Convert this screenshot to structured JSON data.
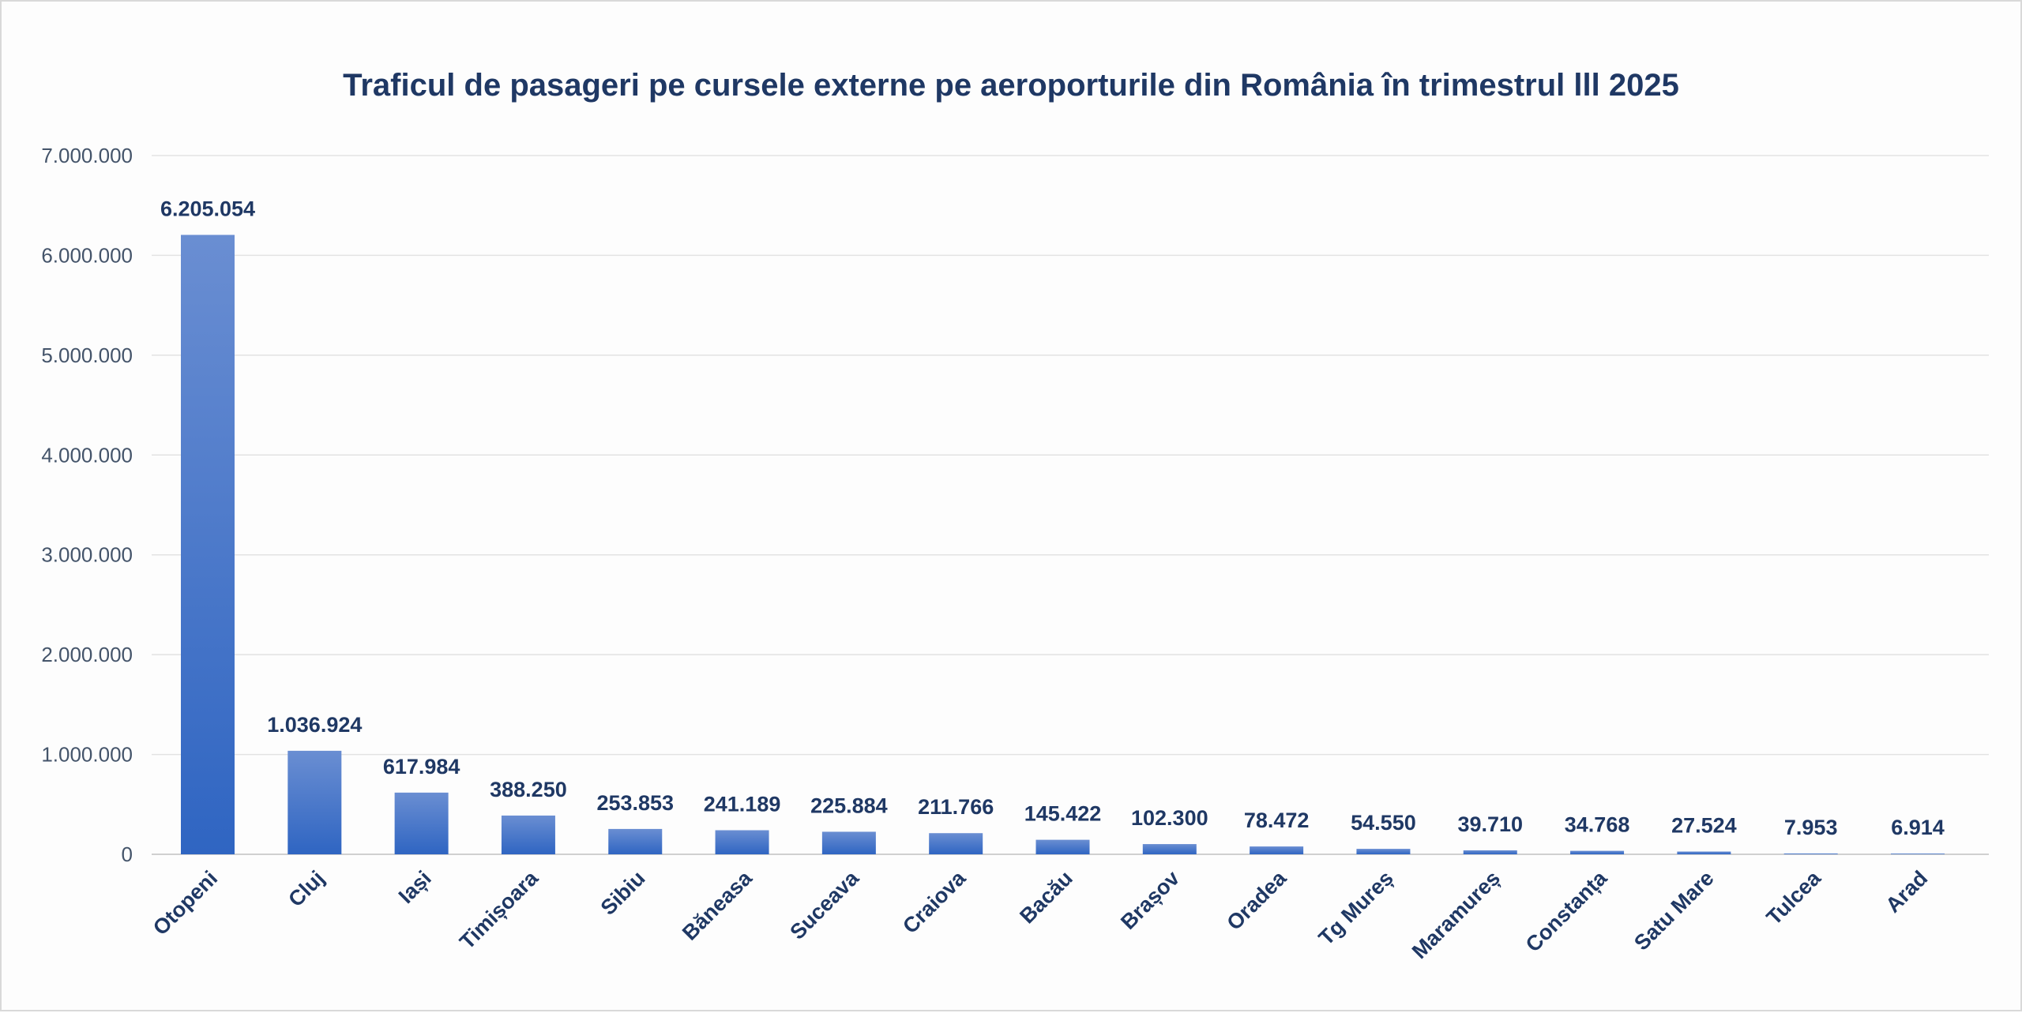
{
  "chart_data": {
    "type": "bar",
    "title": "Traficul de pasageri pe cursele externe pe aeroporturile din România în trimestrul lll 2025",
    "xlabel": "",
    "ylabel": "",
    "categories": [
      "Otopeni",
      "Cluj",
      "Iași",
      "Timișoara",
      "Sibiu",
      "Băneasa",
      "Suceava",
      "Craiova",
      "Bacău",
      "Brașov",
      "Oradea",
      "Tg Mureș",
      "Maramureș",
      "Constanța",
      "Satu Mare",
      "Tulcea",
      "Arad"
    ],
    "values": [
      6205054,
      1036924,
      617984,
      388250,
      253853,
      241189,
      225884,
      211766,
      145422,
      102300,
      78472,
      54550,
      39710,
      34768,
      27524,
      7953,
      6914
    ],
    "data_labels": [
      "6.205.054",
      "1.036.924",
      "617.984",
      "388.250",
      "253.853",
      "241.189",
      "225.884",
      "211.766",
      "145.422",
      "102.300",
      "78.472",
      "54.550",
      "39.710",
      "34.768",
      "27.524",
      "7.953",
      "6.914"
    ],
    "ylim": [
      0,
      7000000
    ],
    "yticks": [
      0,
      1000000,
      2000000,
      3000000,
      4000000,
      5000000,
      6000000,
      7000000
    ],
    "ytick_labels": [
      "0",
      "1.000.000",
      "2.000.000",
      "3.000.000",
      "4.000.000",
      "5.000.000",
      "6.000.000",
      "7.000.000"
    ],
    "grid": true,
    "legend": "none",
    "colors": {
      "bar_top": "#6a8ed2",
      "bar_bottom": "#2f65c2",
      "title": "#1f3864",
      "axis_text": "#44546a",
      "gridline": "#e3e3e3"
    }
  }
}
